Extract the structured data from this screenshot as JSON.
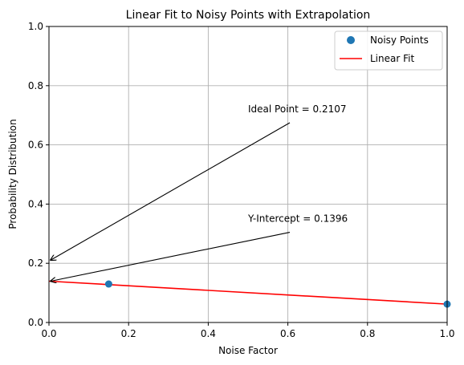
{
  "chart_data": {
    "type": "scatter",
    "title": "Linear Fit to Noisy Points with Extrapolation",
    "xlabel": "Noise Factor",
    "ylabel": "Probability Distribution",
    "xlim": [
      0,
      1
    ],
    "ylim": [
      0,
      1
    ],
    "xticks": [
      "0.0",
      "0.2",
      "0.4",
      "0.6",
      "0.8",
      "1.0"
    ],
    "yticks": [
      "0.0",
      "0.2",
      "0.4",
      "0.6",
      "0.8",
      "1.0"
    ],
    "grid": true,
    "legend_position": "top-right",
    "series": [
      {
        "name": "Noisy Points",
        "kind": "scatter",
        "color": "#1f77b4",
        "points": [
          {
            "x": 0.15,
            "y": 0.13
          },
          {
            "x": 1.0,
            "y": 0.062
          }
        ]
      },
      {
        "name": "Linear Fit",
        "kind": "line",
        "color": "#ff0000",
        "points": [
          {
            "x": 0.0,
            "y": 0.1396
          },
          {
            "x": 1.0,
            "y": 0.062
          }
        ]
      }
    ],
    "annotations": [
      {
        "text": "Ideal Point = 0.2107",
        "target": {
          "x": 0.0,
          "y": 0.2107
        },
        "label_at": {
          "x": 0.5,
          "y": 0.71
        }
      },
      {
        "text": "Y-Intercept = 0.1396",
        "target": {
          "x": 0.0,
          "y": 0.1396
        },
        "label_at": {
          "x": 0.5,
          "y": 0.34
        }
      }
    ]
  }
}
